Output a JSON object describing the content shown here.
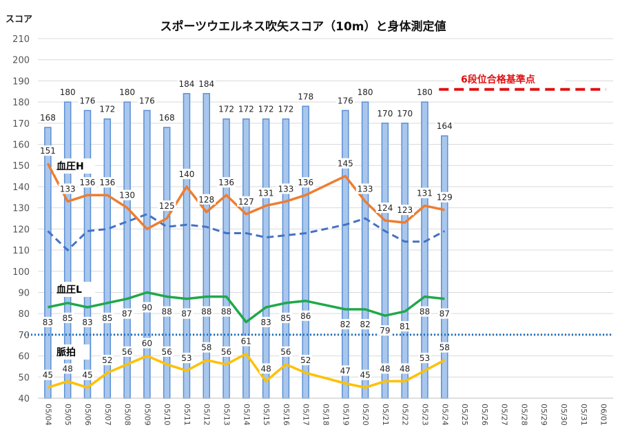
{
  "chart_data": {
    "type": "bar",
    "title": "スポーツウエルネス吹矢スコア（10m）と身体測定値",
    "ylabel": "スコア",
    "ylim": [
      40,
      210
    ],
    "yticks": [
      40,
      50,
      60,
      70,
      80,
      90,
      100,
      110,
      120,
      130,
      140,
      150,
      160,
      170,
      180,
      190,
      200,
      210
    ],
    "categories": [
      "05/04",
      "05/05",
      "05/06",
      "05/07",
      "05/08",
      "05/09",
      "05/10",
      "05/11",
      "05/12",
      "05/13",
      "05/14",
      "05/15",
      "05/16",
      "05/17",
      "05/18",
      "05/19",
      "05/20",
      "05/21",
      "05/22",
      "05/23",
      "05/24",
      "05/25",
      "05/26",
      "05/27",
      "05/28",
      "05/29",
      "05/30",
      "05/31",
      "06/01"
    ],
    "score": [
      168,
      180,
      176,
      172,
      180,
      176,
      168,
      184,
      184,
      172,
      172,
      172,
      172,
      178,
      null,
      176,
      180,
      170,
      170,
      180,
      164,
      null,
      null,
      null,
      null,
      null,
      null,
      null,
      null
    ],
    "bp_high": [
      151,
      133,
      136,
      136,
      130,
      120,
      125,
      140,
      128,
      136,
      127,
      131,
      133,
      136,
      null,
      145,
      133,
      124,
      123,
      131,
      129,
      null,
      null,
      null,
      null,
      null,
      null,
      null,
      null
    ],
    "bp_high_labels": [
      "151",
      "133",
      "136",
      "136",
      "130",
      "",
      "125",
      "140",
      "128",
      "136",
      "127",
      "131",
      "133",
      "136",
      "",
      "145",
      "133",
      "124",
      "123",
      "131",
      "129",
      "",
      "",
      "",
      "",
      "",
      "",
      "",
      ""
    ],
    "bp_low": [
      83,
      85,
      83,
      85,
      87,
      90,
      88,
      87,
      88,
      88,
      76,
      83,
      85,
      86,
      null,
      82,
      82,
      79,
      81,
      88,
      87,
      null,
      null,
      null,
      null,
      null,
      null,
      null,
      null
    ],
    "bp_low_labels": [
      "83",
      "85",
      "83",
      "85",
      "87",
      "90",
      "88",
      "87",
      "88",
      "88",
      "",
      "83",
      "85",
      "86",
      "",
      "82",
      "82",
      "79",
      "81",
      "88",
      "87",
      "",
      "",
      "",
      "",
      "",
      "",
      "",
      ""
    ],
    "pulse": [
      45,
      48,
      45,
      52,
      56,
      60,
      56,
      53,
      58,
      56,
      61,
      48,
      56,
      52,
      null,
      47,
      45,
      48,
      48,
      53,
      58,
      null,
      null,
      null,
      null,
      null,
      null,
      null,
      null
    ],
    "average": [
      119,
      110,
      119,
      120,
      null,
      127,
      121,
      122,
      121,
      118,
      118,
      116,
      117,
      118,
      null,
      122,
      125,
      119,
      114,
      114,
      119,
      null,
      null,
      null,
      null,
      null,
      null,
      null,
      null
    ],
    "reference_line": 70,
    "goal_line": {
      "value": 186,
      "label": "6段位合格基準点",
      "from": "05/24",
      "to": "06/01"
    },
    "series_labels": {
      "bp_high": "血圧H",
      "bp_low": "血圧L",
      "pulse": "脈拍"
    },
    "colors": {
      "bar_fill": "#a9c7ec",
      "bar_stroke": "#5b8fd6",
      "bp_high": "#ed7d31",
      "bp_low": "#1fa84a",
      "pulse": "#ffc000",
      "average": "#4472c4",
      "reference": "#1f6fc0",
      "goal": "#e01010"
    }
  }
}
